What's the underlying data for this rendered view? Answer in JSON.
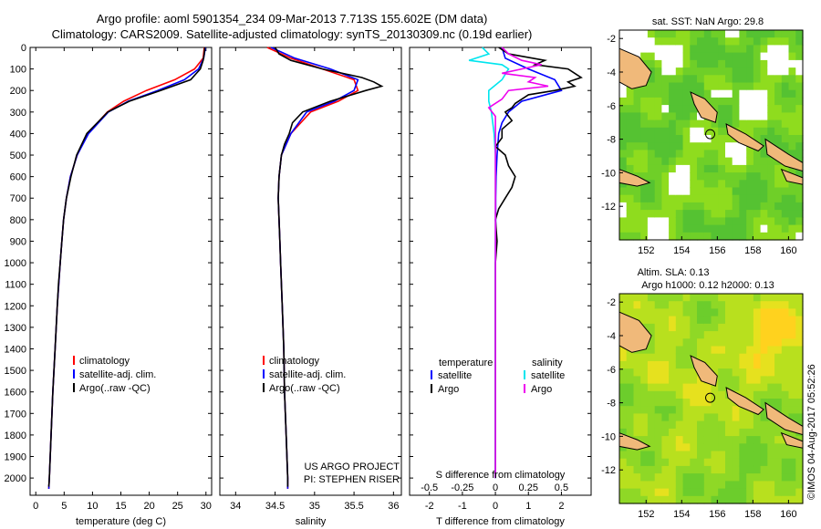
{
  "header": {
    "line1": "Argo profile: aoml 5901354_234 09-Mar-2013 7.713S 155.602E (DM data)",
    "line2": "Climatology: CARS2009. Satellite-adjusted climatology: synTS_20130309.nc (0.19d earlier)"
  },
  "stamp": "©IMOS 04-Aug-2017 05:52:26",
  "colors": {
    "climatology": "#ff0000",
    "satellite": "#0000ff",
    "argo": "#000000",
    "cyan": "#00e5ee",
    "magenta": "#ee00ee"
  },
  "chart_data": [
    {
      "type": "line",
      "name": "temperature",
      "xlabel": "temperature (deg C)",
      "ylabel": "",
      "xlim": [
        -1,
        31
      ],
      "ylim": [
        2080,
        0
      ],
      "xticks": [
        0,
        5,
        10,
        15,
        20,
        25,
        30
      ],
      "yticks": [
        0,
        100,
        200,
        300,
        400,
        500,
        600,
        700,
        800,
        900,
        1000,
        1100,
        1200,
        1300,
        1400,
        1500,
        1600,
        1700,
        1800,
        1900,
        2000
      ],
      "legend": [
        "climatology",
        "satellite-adj. clim.",
        "Argo(..raw -QC)"
      ],
      "series": [
        {
          "name": "climatology",
          "depth": [
            0,
            50,
            100,
            150,
            200,
            250,
            300,
            400,
            500,
            600,
            700,
            800,
            900,
            1000,
            1200,
            1400,
            1600,
            1800,
            2000,
            2050
          ],
          "values": [
            29.7,
            29.5,
            28.0,
            24.5,
            19.5,
            15.5,
            12.6,
            9.2,
            7.3,
            6.1,
            5.4,
            4.9,
            4.6,
            4.3,
            3.8,
            3.4,
            3.0,
            2.7,
            2.4,
            2.3
          ]
        },
        {
          "name": "satellite",
          "depth": [
            0,
            50,
            100,
            150,
            200,
            250,
            300,
            400,
            500,
            600,
            700,
            800,
            900,
            1000,
            1200,
            1400,
            1600,
            1800,
            2000,
            2050
          ],
          "values": [
            29.9,
            29.6,
            28.7,
            26.2,
            21.5,
            16.3,
            12.8,
            9.3,
            7.3,
            6.1,
            5.4,
            4.9,
            4.6,
            4.3,
            3.8,
            3.4,
            3.0,
            2.7,
            2.4,
            2.3
          ]
        },
        {
          "name": "argo",
          "depth": [
            0,
            30,
            60,
            100,
            150,
            200,
            250,
            300,
            400,
            500,
            600,
            700,
            800,
            900,
            1000,
            1100,
            1200,
            1400,
            1600,
            1800,
            2000,
            2040
          ],
          "values": [
            29.8,
            29.7,
            29.5,
            29.0,
            27.3,
            22.0,
            16.5,
            12.7,
            9.0,
            7.2,
            6.2,
            5.4,
            4.9,
            4.6,
            4.3,
            4.0,
            3.8,
            3.4,
            3.0,
            2.7,
            2.4,
            2.3
          ]
        }
      ]
    },
    {
      "type": "line",
      "name": "salinity",
      "xlabel": "salinity",
      "xlim": [
        33.8,
        36.1
      ],
      "ylim": [
        2080,
        0
      ],
      "xticks": [
        34,
        34.5,
        35,
        35.5,
        36
      ],
      "legend": [
        "climatology",
        "satellite-adj. clim.",
        "Argo(..raw -QC)"
      ],
      "annotation": [
        "US ARGO PROJECT",
        "PI: STEPHEN RISER"
      ],
      "series": [
        {
          "name": "climatology",
          "depth": [
            0,
            50,
            100,
            150,
            200,
            250,
            300,
            400,
            500,
            600,
            700,
            800,
            900,
            1000,
            1200,
            1400,
            1600,
            1800,
            2000,
            2050
          ],
          "values": [
            34.4,
            34.7,
            35.1,
            35.5,
            35.55,
            35.3,
            34.95,
            34.7,
            34.58,
            34.55,
            34.54,
            34.55,
            34.56,
            34.57,
            34.59,
            34.61,
            34.62,
            34.64,
            34.66,
            34.66
          ]
        },
        {
          "name": "satellite",
          "depth": [
            0,
            50,
            100,
            150,
            200,
            250,
            300,
            400,
            500,
            600,
            700,
            800,
            900,
            1000,
            1200,
            1400,
            1600,
            1800,
            2000,
            2050
          ],
          "values": [
            34.45,
            34.75,
            35.2,
            35.55,
            35.5,
            35.25,
            34.9,
            34.7,
            34.58,
            34.55,
            34.54,
            34.55,
            34.56,
            34.57,
            34.59,
            34.61,
            34.62,
            34.64,
            34.66,
            34.66
          ]
        },
        {
          "name": "argo",
          "depth": [
            0,
            30,
            60,
            100,
            140,
            160,
            180,
            200,
            250,
            300,
            350,
            400,
            450,
            500,
            600,
            700,
            800,
            900,
            1000,
            1200,
            1400,
            1600,
            1800,
            2000,
            2040
          ],
          "values": [
            34.5,
            34.55,
            34.7,
            35.1,
            35.6,
            35.75,
            35.85,
            35.65,
            35.2,
            34.85,
            34.72,
            34.68,
            34.62,
            34.58,
            34.55,
            34.54,
            34.55,
            34.56,
            34.57,
            34.59,
            34.61,
            34.62,
            34.64,
            34.66,
            34.66
          ]
        }
      ]
    },
    {
      "type": "line",
      "name": "differences",
      "xlabel": "T difference from climatology",
      "xlabel_top": "S difference from climatology",
      "xlim": [
        -2.6,
        2.9
      ],
      "ylim": [
        2080,
        0
      ],
      "xticks": [
        -2,
        -1,
        0,
        1,
        2
      ],
      "xticks_s": [
        "-0.5",
        "-0.25",
        "0",
        "0.25",
        "0.5"
      ],
      "xticks_s_values": [
        -0.5,
        -0.25,
        0,
        0.25,
        0.5
      ],
      "s_scale": 4,
      "legend_titles": [
        "temperature",
        "salinity"
      ],
      "legend": [
        "satellite",
        "Argo",
        "satellite",
        "Argo"
      ],
      "series": [
        {
          "name": "T satellite",
          "depth": [
            0,
            50,
            100,
            150,
            200,
            250,
            300,
            350,
            400,
            500,
            600,
            700,
            800,
            1000,
            1200,
            1500,
            2000
          ],
          "values": [
            0.2,
            0.3,
            1.0,
            1.8,
            2.0,
            0.8,
            0.4,
            0.2,
            0.1,
            0.05,
            0.02,
            0.01,
            0.01,
            0.0,
            0.0,
            0.0,
            0.0
          ]
        },
        {
          "name": "T Argo",
          "depth": [
            0,
            30,
            60,
            80,
            100,
            120,
            140,
            160,
            180,
            200,
            220,
            240,
            260,
            280,
            300,
            340,
            380,
            420,
            460,
            500,
            550,
            600,
            650,
            700,
            750,
            800,
            900,
            1000,
            1100,
            1200,
            1400,
            1600,
            1800,
            2000
          ],
          "values": [
            0.1,
            0.4,
            1.5,
            1.2,
            2.2,
            2.4,
            2.6,
            2.2,
            2.4,
            1.8,
            1.0,
            0.8,
            0.6,
            0.5,
            0.3,
            0.5,
            0.2,
            0.2,
            0.0,
            0.3,
            0.4,
            0.6,
            0.5,
            0.3,
            0.1,
            0.0,
            0.05,
            0.0,
            0.0,
            0.0,
            0.0,
            0.0,
            0.0,
            0.0
          ]
        },
        {
          "name": "S satellite",
          "depth": [
            0,
            30,
            60,
            80,
            100,
            150,
            200,
            250,
            300,
            400,
            500,
            700,
            1000,
            1500,
            2000
          ],
          "values": [
            -0.1,
            -0.05,
            -0.2,
            0.05,
            0.1,
            0.05,
            -0.05,
            -0.05,
            -0.03,
            -0.01,
            0.0,
            0.0,
            0.0,
            0.0,
            0.0
          ]
        },
        {
          "name": "S Argo",
          "depth": [
            0,
            30,
            60,
            80,
            100,
            120,
            140,
            160,
            180,
            200,
            240,
            280,
            320,
            400,
            500,
            700,
            1000,
            1500,
            2000
          ],
          "values": [
            0.05,
            0.1,
            0.2,
            0.35,
            0.2,
            0.05,
            0.3,
            0.25,
            0.4,
            0.1,
            0.05,
            -0.05,
            0.0,
            0.0,
            0.0,
            0.0,
            0.0,
            0.0,
            0.0
          ]
        }
      ]
    },
    {
      "type": "heatmap",
      "name": "sst_map",
      "title": "sat. SST: NaN Argo: 29.8",
      "xticks": [
        152,
        154,
        156,
        158,
        160
      ],
      "yticks": [
        -2,
        -4,
        -6,
        -8,
        -10,
        -12
      ],
      "xlim": [
        150.5,
        160.8
      ],
      "ylim": [
        -14,
        -1.5
      ],
      "argo_position": [
        155.6,
        -7.7
      ]
    },
    {
      "type": "heatmap",
      "name": "sla_map",
      "title": "Altim. SLA: 0.13",
      "subtitle": "Argo h1000: 0.12 h2000: 0.13",
      "xticks": [
        152,
        154,
        156,
        158,
        160
      ],
      "yticks": [
        -2,
        -4,
        -6,
        -8,
        -10,
        -12
      ],
      "xlim": [
        150.5,
        160.8
      ],
      "ylim": [
        -14,
        -1.5
      ],
      "argo_position": [
        155.6,
        -7.7
      ]
    }
  ]
}
